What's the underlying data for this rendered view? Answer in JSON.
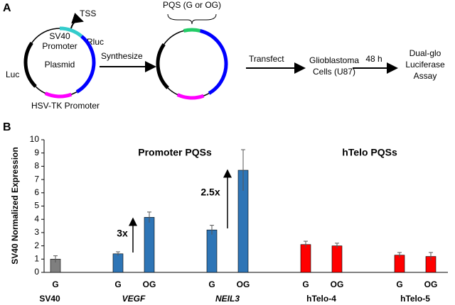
{
  "panel_a": {
    "label": "A",
    "tss": "TSS",
    "promoter": [
      "SV40",
      "Promoter"
    ],
    "rluc": "Rluc",
    "plasmid": "Plasmid",
    "luc": "Luc",
    "hsv": "HSV-TK Promoter",
    "synthesize": "Synthesize",
    "pqs": "PQS (G or OG)",
    "transfect": "Transfect",
    "cells": [
      "Glioblastoma",
      "Cells (U87)"
    ],
    "time": "48 h",
    "assay": [
      "Dual-glo",
      "Luciferase",
      "Assay"
    ]
  },
  "chart_data": {
    "type": "bar",
    "panel_label": "B",
    "ylabel": "SV40 Normalized Expression",
    "categories": [
      "G",
      null,
      "G",
      "OG",
      null,
      "G",
      "OG",
      null,
      "G",
      "OG",
      null,
      "G",
      "OG"
    ],
    "values": [
      1.0,
      null,
      1.4,
      4.15,
      null,
      3.2,
      7.7,
      null,
      2.1,
      2.0,
      null,
      1.3,
      1.2
    ],
    "errors": [
      0.25,
      null,
      0.15,
      0.4,
      null,
      0.35,
      1.55,
      null,
      0.25,
      0.2,
      null,
      0.2,
      0.3
    ],
    "colors": [
      "#7f7f7f",
      null,
      "#2e75b6",
      "#2e75b6",
      null,
      "#2e75b6",
      "#2e75b6",
      null,
      "#ff0000",
      "#ff0000",
      null,
      "#ff0000",
      "#ff0000"
    ],
    "groups": [
      "SV40",
      "VEGF",
      "NEIL3",
      "hTelo-4",
      "hTelo-5"
    ],
    "annotations": [
      "Promoter PQSs",
      "hTelo PQSs",
      "3x",
      "2.5x"
    ],
    "ylim": [
      0,
      10
    ],
    "yticks": [
      0,
      1,
      2,
      3,
      4,
      5,
      6,
      7,
      8,
      9,
      10
    ]
  }
}
